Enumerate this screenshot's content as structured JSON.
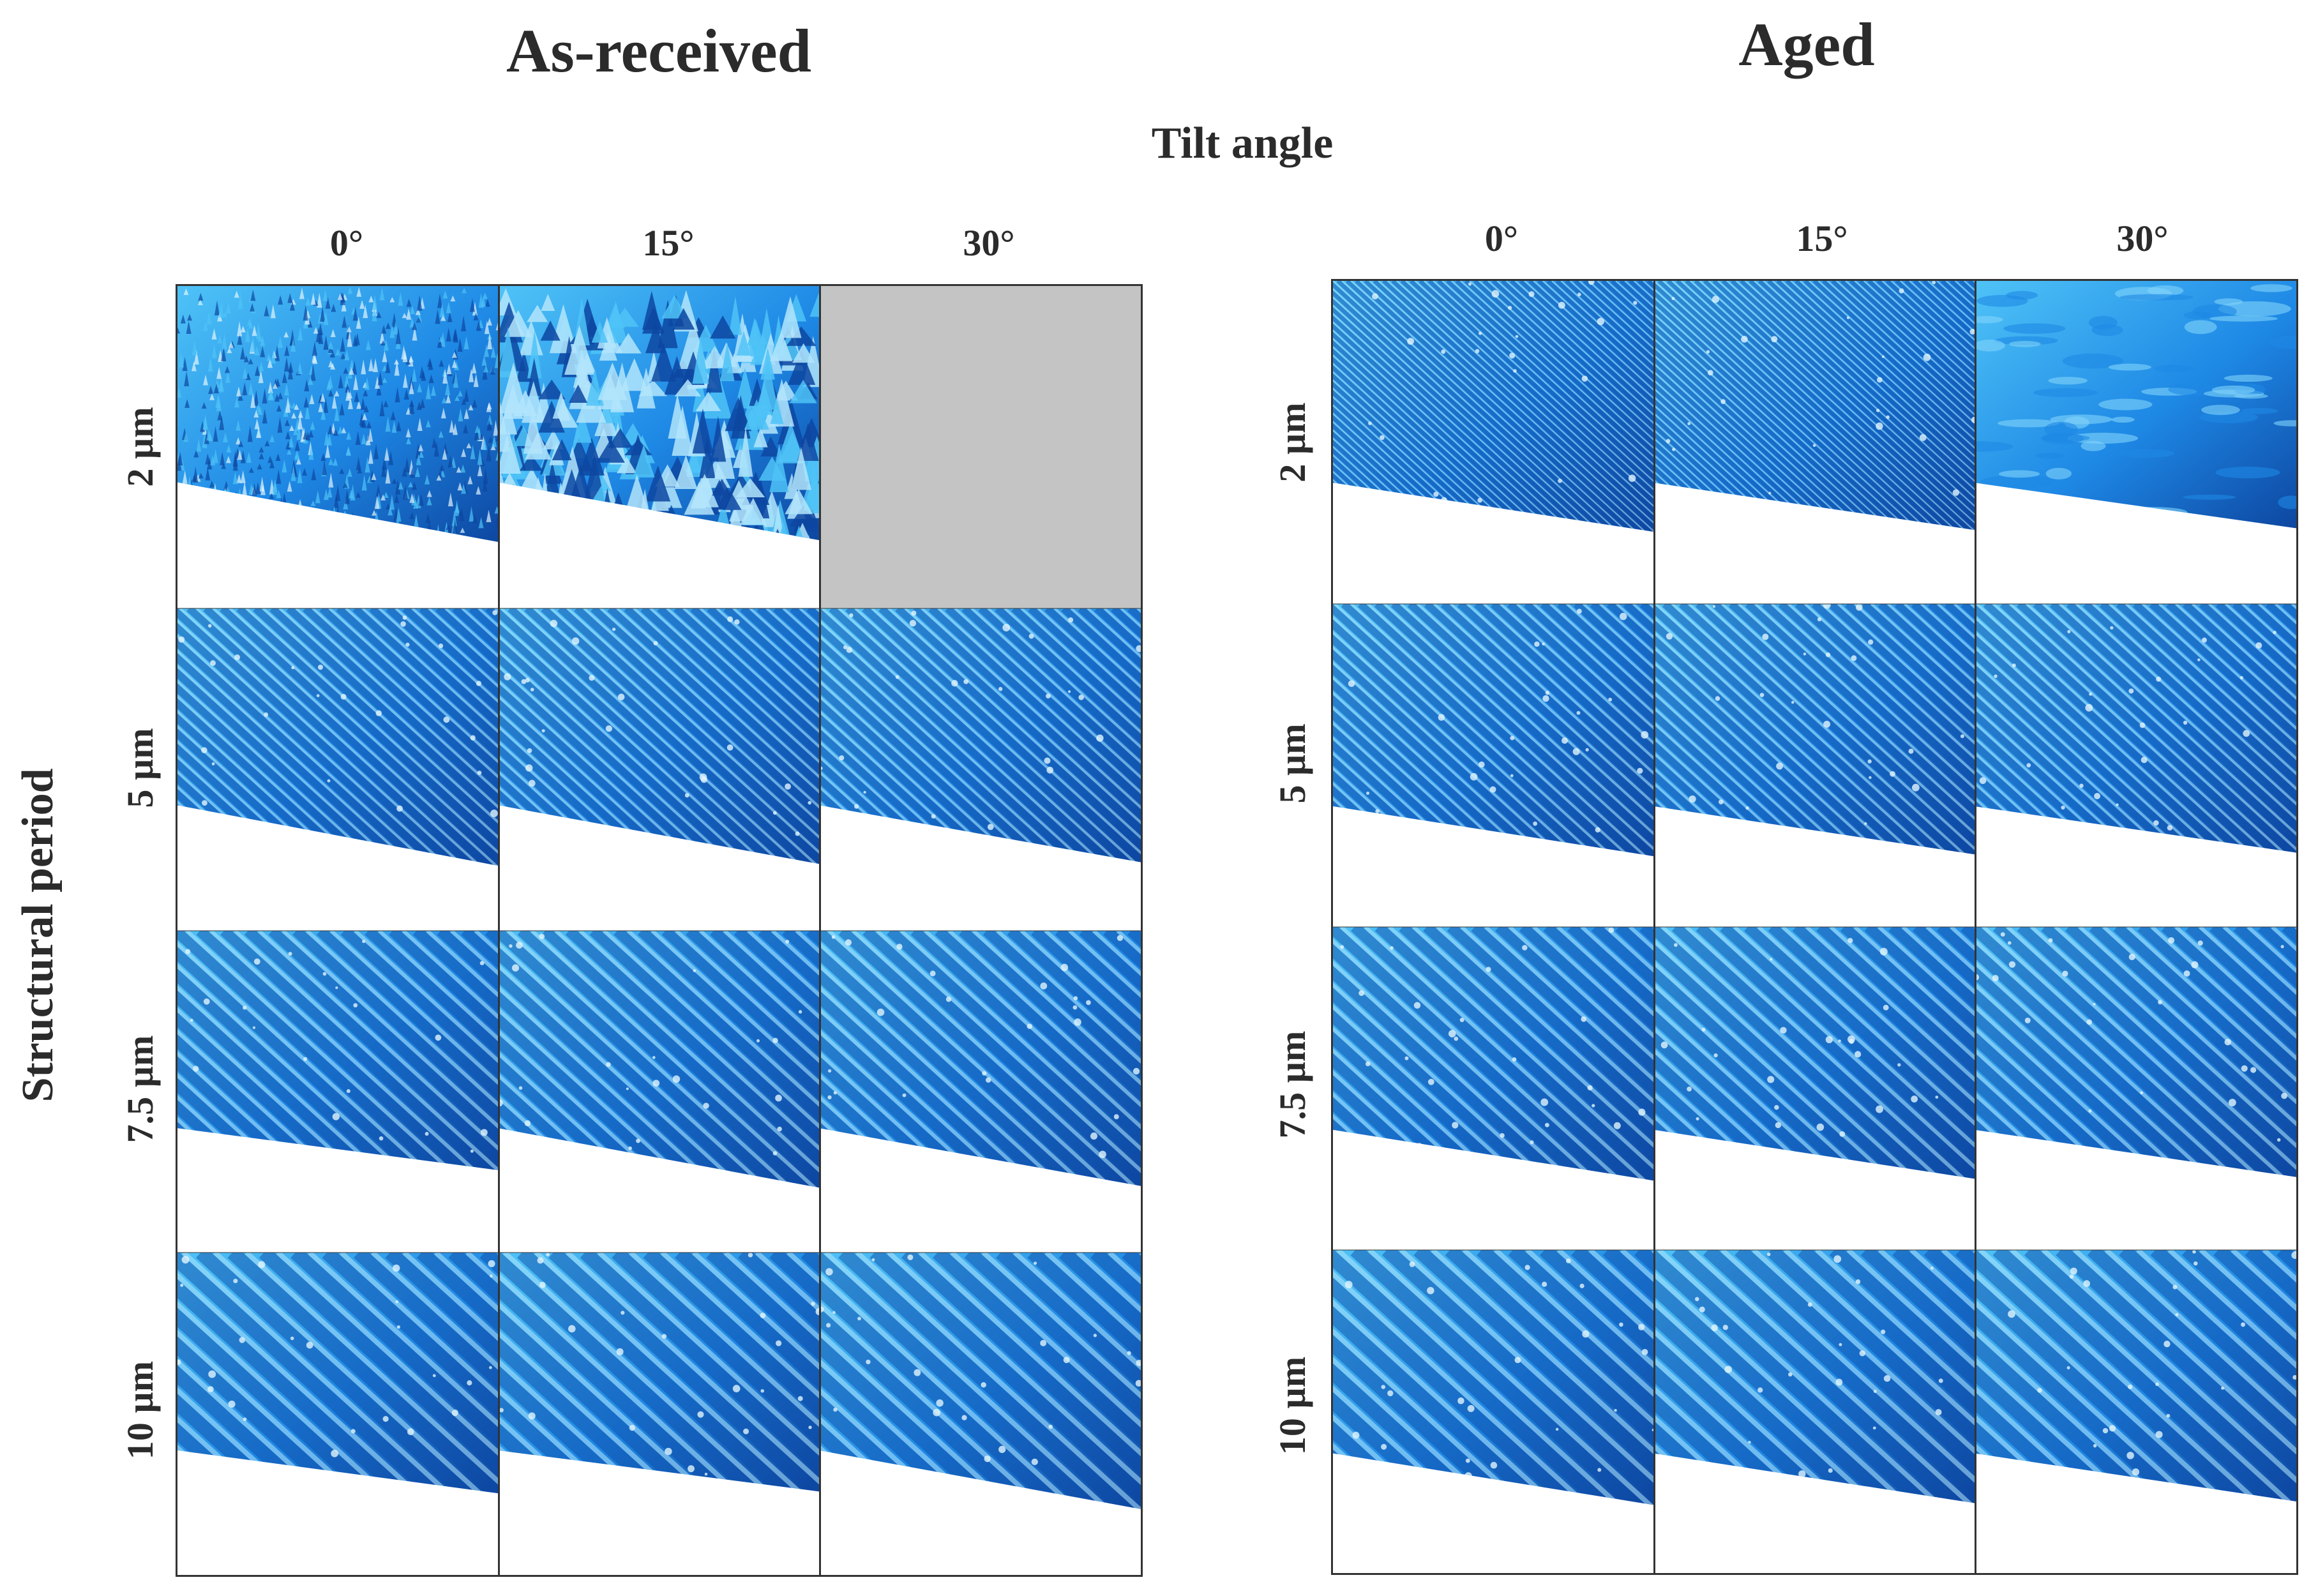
{
  "titles": {
    "left": "As-received",
    "right": "Aged"
  },
  "x_axis": {
    "label": "Tilt angle",
    "angles": [
      "0°",
      "15°",
      "30°"
    ]
  },
  "y_axis": {
    "label": "Structural period",
    "periods": [
      "2 µm",
      "5 µm",
      "7.5 µm",
      "10 µm"
    ]
  },
  "colors": {
    "surface_light": "#4fc3f7",
    "surface_mid": "#1e88e5",
    "surface_dark": "#0d47a1",
    "missing_cell": "#c4c4c4",
    "border": "#333333"
  },
  "panels": [
    {
      "name": "As-received",
      "cells": [
        [
          "nanospikes",
          "spiky-peaks",
          "missing"
        ],
        [
          "ridges",
          "ridges",
          "ridges"
        ],
        [
          "ridges",
          "ridges",
          "ridges"
        ],
        [
          "ridges",
          "ridges",
          "ridges"
        ]
      ]
    },
    {
      "name": "Aged",
      "cells": [
        [
          "ridges",
          "ridges",
          "smooth"
        ],
        [
          "ridges",
          "ridges",
          "ridges"
        ],
        [
          "ridges",
          "ridges",
          "ridges"
        ],
        [
          "ridges",
          "ridges",
          "ridges"
        ]
      ]
    }
  ]
}
